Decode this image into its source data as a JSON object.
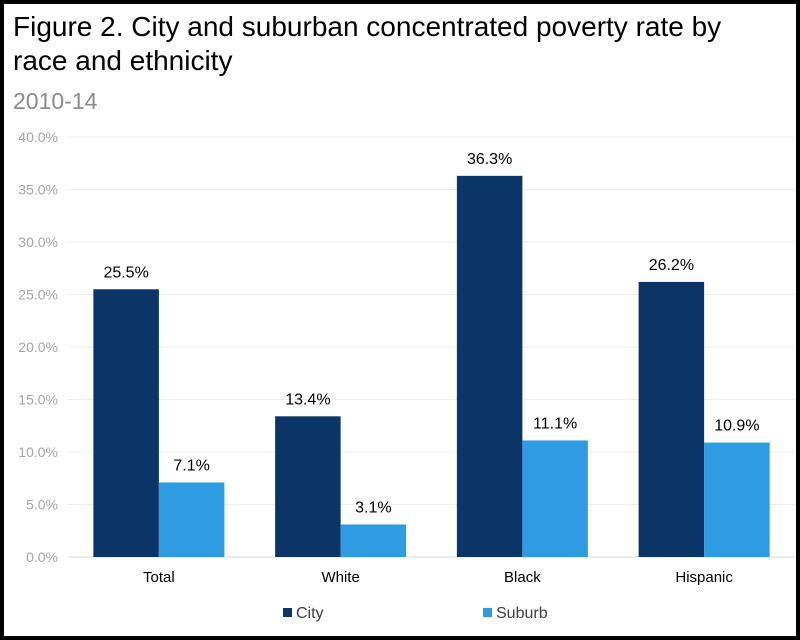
{
  "chart_data": {
    "type": "bar",
    "title": "Figure 2. City and suburban concentrated poverty rate by race and ethnicity",
    "subtitle": "2010-14",
    "categories": [
      "Total",
      "White",
      "Black",
      "Hispanic"
    ],
    "series": [
      {
        "name": "City",
        "values": [
          25.5,
          13.4,
          36.3,
          26.2
        ],
        "labels": [
          "25.5%",
          "13.4%",
          "36.3%",
          "26.2%"
        ],
        "color": "#0b3567"
      },
      {
        "name": "Suburb",
        "values": [
          7.1,
          3.1,
          11.1,
          10.9
        ],
        "labels": [
          "7.1%",
          "3.1%",
          "11.1%",
          "10.9%"
        ],
        "color": "#2e9be2"
      }
    ],
    "ylim": [
      0,
      40
    ],
    "yticks": [
      "0.0%",
      "5.0%",
      "10.0%",
      "15.0%",
      "20.0%",
      "25.0%",
      "30.0%",
      "35.0%",
      "40.0%"
    ],
    "grid": true,
    "legend": "bottom"
  }
}
